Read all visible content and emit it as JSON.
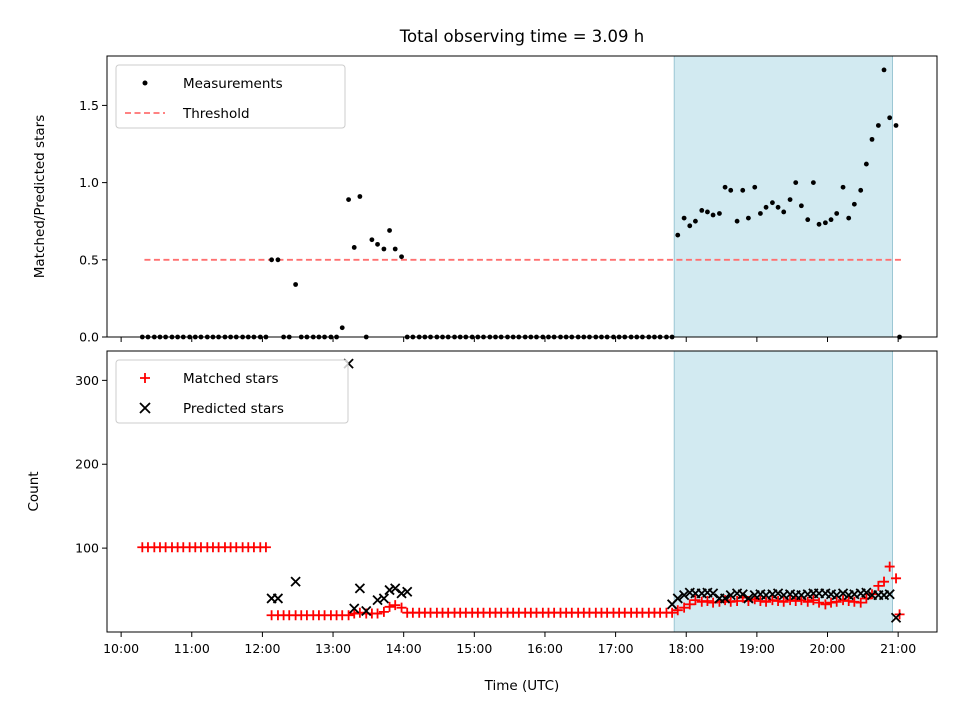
{
  "figure": {
    "title": "Total observing time = 3.09 h",
    "xlabel": "Time (UTC)"
  },
  "chart_data": [
    {
      "type": "scatter",
      "ylabel": "Matched/Predicted stars",
      "xlim": [
        9.8,
        21.55
      ],
      "ylim": [
        0.0,
        1.82
      ],
      "yticks": [
        0.0,
        0.5,
        1.0,
        1.5
      ],
      "ytick_labels": [
        "0.0",
        "0.5",
        "1.0",
        "1.5"
      ],
      "shaded_region": {
        "x": [
          17.83,
          20.92
        ],
        "color": "#add8e6"
      },
      "legend_position": "upper-left",
      "legend": [
        "Measurements",
        "Threshold"
      ],
      "series": [
        {
          "name": "Threshold",
          "kind": "dashed-line",
          "color": "#ff7070",
          "x": [
            10.33,
            21.05
          ],
          "y": [
            0.5,
            0.5
          ]
        },
        {
          "name": "Measurements",
          "kind": "dot",
          "color": "#000000",
          "x": [
            10.3,
            10.38,
            10.47,
            10.55,
            10.63,
            10.72,
            10.8,
            10.88,
            10.97,
            11.05,
            11.13,
            11.22,
            11.3,
            11.38,
            11.47,
            11.55,
            11.63,
            11.72,
            11.8,
            11.88,
            11.97,
            12.05,
            12.13,
            12.22,
            12.3,
            12.38,
            12.47,
            12.55,
            12.63,
            12.72,
            12.8,
            12.88,
            12.97,
            13.05,
            13.13,
            13.22,
            13.3,
            13.38,
            13.47,
            13.55,
            13.63,
            13.72,
            13.8,
            13.88,
            13.97,
            14.05,
            14.13,
            14.22,
            14.3,
            14.38,
            14.47,
            14.55,
            14.63,
            14.72,
            14.8,
            14.88,
            14.97,
            15.05,
            15.13,
            15.22,
            15.3,
            15.38,
            15.47,
            15.55,
            15.63,
            15.72,
            15.8,
            15.88,
            15.97,
            16.05,
            16.13,
            16.22,
            16.3,
            16.38,
            16.47,
            16.55,
            16.63,
            16.72,
            16.8,
            16.88,
            16.97,
            17.05,
            17.13,
            17.22,
            17.3,
            17.38,
            17.47,
            17.55,
            17.63,
            17.72,
            17.8,
            17.88,
            17.97,
            18.05,
            18.13,
            18.22,
            18.3,
            18.38,
            18.47,
            18.55,
            18.63,
            18.72,
            18.8,
            18.88,
            18.97,
            19.05,
            19.13,
            19.22,
            19.3,
            19.38,
            19.47,
            19.55,
            19.63,
            19.72,
            19.8,
            19.88,
            19.97,
            20.05,
            20.13,
            20.22,
            20.3,
            20.38,
            20.47,
            20.55,
            20.63,
            20.72,
            20.8,
            20.88,
            20.97,
            21.02
          ],
          "y": [
            0.0,
            0.0,
            0.0,
            0.0,
            0.0,
            0.0,
            0.0,
            0.0,
            0.0,
            0.0,
            0.0,
            0.0,
            0.0,
            0.0,
            0.0,
            0.0,
            0.0,
            0.0,
            0.0,
            0.0,
            0.0,
            0.0,
            0.5,
            0.5,
            0.0,
            0.0,
            0.34,
            0.0,
            0.0,
            0.0,
            0.0,
            0.0,
            0.0,
            0.0,
            0.06,
            0.89,
            0.58,
            0.91,
            0.0,
            0.63,
            0.6,
            0.57,
            0.69,
            0.57,
            0.52,
            0.0,
            0.0,
            0.0,
            0.0,
            0.0,
            0.0,
            0.0,
            0.0,
            0.0,
            0.0,
            0.0,
            0.0,
            0.0,
            0.0,
            0.0,
            0.0,
            0.0,
            0.0,
            0.0,
            0.0,
            0.0,
            0.0,
            0.0,
            0.0,
            0.0,
            0.0,
            0.0,
            0.0,
            0.0,
            0.0,
            0.0,
            0.0,
            0.0,
            0.0,
            0.0,
            0.0,
            0.0,
            0.0,
            0.0,
            0.0,
            0.0,
            0.0,
            0.0,
            0.0,
            0.0,
            0.0,
            0.66,
            0.77,
            0.72,
            0.75,
            0.82,
            0.81,
            0.79,
            0.8,
            0.97,
            0.95,
            0.75,
            0.95,
            0.77,
            0.97,
            0.8,
            0.84,
            0.87,
            0.84,
            0.81,
            0.89,
            1.0,
            0.85,
            0.76,
            1.0,
            0.73,
            0.74,
            0.76,
            0.8,
            0.97,
            0.77,
            0.86,
            0.95,
            1.12,
            1.28,
            1.37,
            1.73,
            1.42,
            1.37,
            0.0
          ]
        }
      ]
    },
    {
      "type": "scatter",
      "ylabel": "Count",
      "xlim": [
        9.8,
        21.55
      ],
      "ylim": [
        0,
        335
      ],
      "yticks": [
        100,
        200,
        300
      ],
      "ytick_labels": [
        "100",
        "200",
        "300"
      ],
      "xtick_labels": [
        "10:00",
        "11:00",
        "12:00",
        "13:00",
        "14:00",
        "15:00",
        "16:00",
        "17:00",
        "18:00",
        "19:00",
        "20:00",
        "21:00"
      ],
      "xticks": [
        10,
        11,
        12,
        13,
        14,
        15,
        16,
        17,
        18,
        19,
        20,
        21
      ],
      "shaded_region": {
        "x": [
          17.83,
          20.92
        ],
        "color": "#add8e6"
      },
      "legend_position": "upper-left",
      "legend": [
        "Matched stars",
        "Predicted stars"
      ],
      "series": [
        {
          "name": "Matched stars",
          "kind": "plus",
          "color": "#ff0000",
          "x": [
            10.3,
            10.38,
            10.47,
            10.55,
            10.63,
            10.72,
            10.8,
            10.88,
            10.97,
            11.05,
            11.13,
            11.22,
            11.3,
            11.38,
            11.47,
            11.55,
            11.63,
            11.72,
            11.8,
            11.88,
            11.97,
            12.05,
            12.13,
            12.22,
            12.3,
            12.38,
            12.47,
            12.55,
            12.63,
            12.72,
            12.8,
            12.88,
            12.97,
            13.05,
            13.13,
            13.22,
            13.3,
            13.38,
            13.47,
            13.55,
            13.63,
            13.72,
            13.8,
            13.88,
            13.97,
            14.05,
            14.13,
            14.22,
            14.3,
            14.38,
            14.47,
            14.55,
            14.63,
            14.72,
            14.8,
            14.88,
            14.97,
            15.05,
            15.13,
            15.22,
            15.3,
            15.38,
            15.47,
            15.55,
            15.63,
            15.72,
            15.8,
            15.88,
            15.97,
            16.05,
            16.13,
            16.22,
            16.3,
            16.38,
            16.47,
            16.55,
            16.63,
            16.72,
            16.8,
            16.88,
            16.97,
            17.05,
            17.13,
            17.22,
            17.3,
            17.38,
            17.47,
            17.55,
            17.63,
            17.72,
            17.8,
            17.88,
            17.97,
            18.05,
            18.13,
            18.22,
            18.3,
            18.38,
            18.47,
            18.55,
            18.63,
            18.72,
            18.8,
            18.88,
            18.97,
            19.05,
            19.13,
            19.22,
            19.3,
            19.38,
            19.47,
            19.55,
            19.63,
            19.72,
            19.8,
            19.88,
            19.97,
            20.05,
            20.13,
            20.22,
            20.3,
            20.38,
            20.47,
            20.55,
            20.63,
            20.72,
            20.8,
            20.88,
            20.97,
            21.02
          ],
          "y": [
            101,
            101,
            101,
            101,
            101,
            101,
            101,
            101,
            101,
            101,
            101,
            101,
            101,
            101,
            101,
            101,
            101,
            101,
            101,
            101,
            101,
            101,
            20,
            20,
            20,
            20,
            20,
            20,
            20,
            20,
            20,
            20,
            20,
            20,
            20,
            20,
            22,
            23,
            22,
            22,
            22,
            24,
            30,
            32,
            29,
            23,
            23,
            23,
            23,
            23,
            23,
            23,
            23,
            23,
            23,
            23,
            23,
            23,
            23,
            23,
            23,
            23,
            23,
            23,
            23,
            23,
            23,
            23,
            23,
            23,
            23,
            23,
            23,
            23,
            23,
            23,
            23,
            23,
            23,
            23,
            23,
            23,
            23,
            23,
            23,
            23,
            23,
            23,
            23,
            23,
            23,
            26,
            29,
            33,
            38,
            36,
            37,
            35,
            36,
            38,
            36,
            37,
            41,
            37,
            39,
            37,
            36,
            38,
            37,
            36,
            38,
            37,
            38,
            36,
            38,
            35,
            33,
            35,
            36,
            38,
            37,
            36,
            35,
            40,
            45,
            55,
            60,
            78,
            64,
            21
          ]
        },
        {
          "name": "Predicted stars",
          "kind": "cross",
          "color": "#000000",
          "x": [
            12.13,
            12.22,
            12.47,
            13.22,
            13.3,
            13.38,
            13.47,
            13.63,
            13.72,
            13.8,
            13.88,
            13.97,
            14.05,
            17.8,
            17.88,
            17.97,
            18.05,
            18.13,
            18.22,
            18.3,
            18.38,
            18.47,
            18.55,
            18.63,
            18.72,
            18.8,
            18.88,
            18.97,
            19.05,
            19.13,
            19.22,
            19.3,
            19.38,
            19.47,
            19.55,
            19.63,
            19.72,
            19.8,
            19.88,
            19.97,
            20.05,
            20.13,
            20.22,
            20.3,
            20.38,
            20.47,
            20.55,
            20.63,
            20.72,
            20.8,
            20.88,
            20.97
          ],
          "y": [
            40,
            40,
            60,
            320,
            28,
            52,
            25,
            38,
            40,
            50,
            52,
            46,
            48,
            33,
            40,
            44,
            47,
            46,
            46,
            47,
            46,
            40,
            40,
            44,
            46,
            45,
            40,
            44,
            45,
            44,
            45,
            46,
            44,
            45,
            44,
            44,
            45,
            46,
            46,
            46,
            45,
            44,
            46,
            44,
            45,
            46,
            47,
            44,
            44,
            44,
            45,
            17
          ]
        }
      ]
    }
  ]
}
